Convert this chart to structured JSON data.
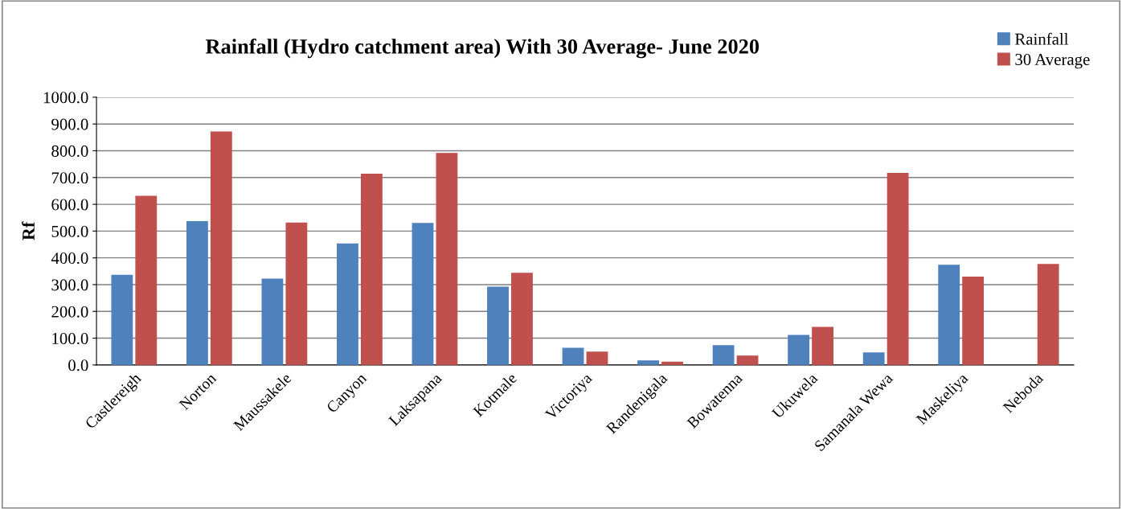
{
  "chart_data": {
    "type": "bar",
    "title": "Rainfall (Hydro catchment area) With 30 Average- June 2020",
    "ylabel": "Rf",
    "categories": [
      "Castlereigh",
      "Norton",
      "Maussakele",
      "Canyon",
      "Laksapana",
      "Kotmale",
      "Victoriya",
      "Randenigala",
      "Bowatenna",
      "Ukuwela",
      "Samanala Wewa",
      "Maskeliya",
      "Neboda"
    ],
    "series": [
      {
        "name": "Rainfall",
        "color": "#4f81bd",
        "values": [
          335,
          535,
          320,
          452,
          528,
          290,
          62,
          15,
          72,
          110,
          45,
          372,
          null
        ]
      },
      {
        "name": "30 Average",
        "color": "#c0504d",
        "values": [
          630,
          870,
          530,
          712,
          790,
          342,
          48,
          10,
          33,
          140,
          715,
          328,
          375
        ]
      }
    ],
    "ylim": [
      0,
      1000
    ],
    "yticks": [
      {
        "value": 0,
        "label": "0.0"
      },
      {
        "value": 100,
        "label": "100.0"
      },
      {
        "value": 200,
        "label": "200.0"
      },
      {
        "value": 300,
        "label": "300.0"
      },
      {
        "value": 400,
        "label": "400.0"
      },
      {
        "value": 500,
        "label": "500.0"
      },
      {
        "value": 600,
        "label": "600.0"
      },
      {
        "value": 700,
        "label": "700.0"
      },
      {
        "value": 800,
        "label": "800.0"
      },
      {
        "value": 900,
        "label": "900.0"
      },
      {
        "value": 1000,
        "label": "1000.0"
      }
    ],
    "grid": "y",
    "legend": "top right"
  }
}
